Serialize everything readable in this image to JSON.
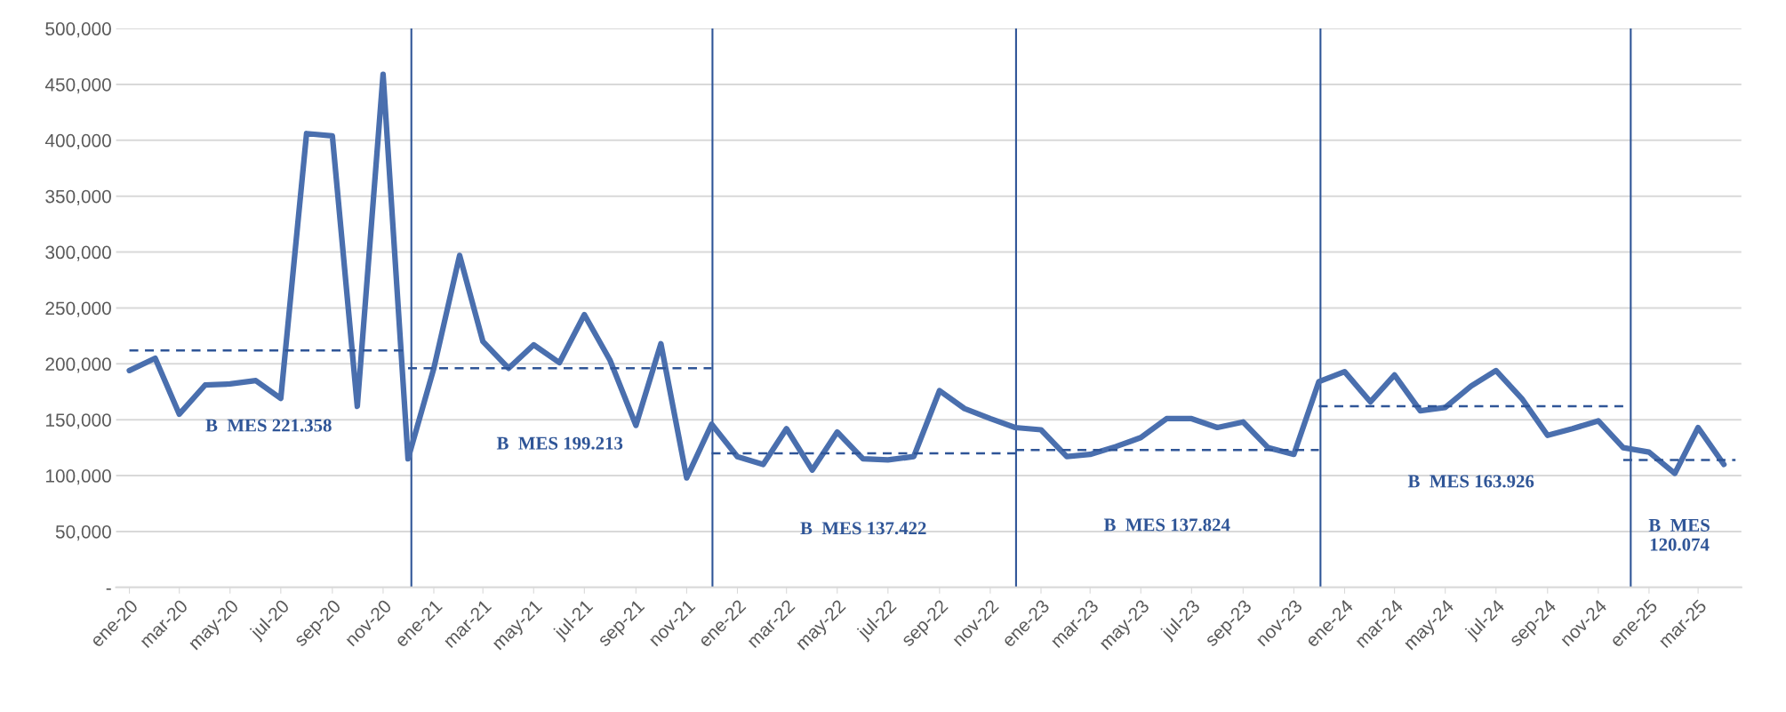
{
  "chart_data": {
    "type": "line",
    "x": [
      "2020-01",
      "2020-02",
      "2020-03",
      "2020-04",
      "2020-05",
      "2020-06",
      "2020-07",
      "2020-08",
      "2020-09",
      "2020-10",
      "2020-11",
      "2020-12",
      "2021-01",
      "2021-02",
      "2021-03",
      "2021-04",
      "2021-05",
      "2021-06",
      "2021-07",
      "2021-08",
      "2021-09",
      "2021-10",
      "2021-11",
      "2021-12",
      "2022-01",
      "2022-02",
      "2022-03",
      "2022-04",
      "2022-05",
      "2022-06",
      "2022-07",
      "2022-08",
      "2022-09",
      "2022-10",
      "2022-11",
      "2022-12",
      "2023-01",
      "2023-02",
      "2023-03",
      "2023-04",
      "2023-05",
      "2023-06",
      "2023-07",
      "2023-08",
      "2023-09",
      "2023-10",
      "2023-11",
      "2023-12",
      "2024-01",
      "2024-02",
      "2024-03",
      "2024-04",
      "2024-05",
      "2024-06",
      "2024-07",
      "2024-08",
      "2024-09",
      "2024-10",
      "2024-11",
      "2024-12",
      "2025-01",
      "2025-02",
      "2025-03",
      "2025-04"
    ],
    "series": [
      {
        "color": "#4a6fae",
        "line_style": "solid",
        "values": [
          194000,
          205000,
          155000,
          181000,
          182000,
          185000,
          169000,
          406000,
          404000,
          162000,
          459000,
          115000,
          196000,
          297000,
          220000,
          196000,
          217000,
          201000,
          244000,
          203000,
          145000,
          218000,
          98000,
          146000,
          117000,
          110000,
          142000,
          105000,
          139000,
          115000,
          114000,
          117000,
          176000,
          160000,
          151000,
          143000,
          141000,
          117000,
          119000,
          126000,
          134000,
          151000,
          151000,
          143000,
          148000,
          125000,
          119000,
          184000,
          193000,
          166000,
          190000,
          158000,
          161000,
          180000,
          194000,
          169000,
          136000,
          142000,
          149000,
          125000,
          121000,
          102000,
          143000,
          110000
        ]
      },
      {
        "type": "line",
        "line_style": "dashed",
        "color": "#2f5597",
        "x": [
          "2020-01",
          "2020-12"
        ],
        "values": [
          212000,
          212000
        ]
      },
      {
        "type": "line",
        "line_style": "dashed",
        "color": "#2f5597",
        "x": [
          "2020-12",
          "2021-12"
        ],
        "values": [
          196000,
          196000
        ]
      },
      {
        "type": "line",
        "line_style": "dashed",
        "color": "#2f5597",
        "x": [
          "2021-12",
          "2022-12"
        ],
        "values": [
          120000,
          120000
        ]
      },
      {
        "type": "line",
        "line_style": "dashed",
        "color": "#2f5597",
        "x": [
          "2022-12",
          "2023-12"
        ],
        "values": [
          123000,
          123000
        ]
      },
      {
        "type": "line",
        "line_style": "dashed",
        "color": "#2f5597",
        "x": [
          "2023-12",
          "2024-12"
        ],
        "values": [
          162000,
          162000
        ]
      },
      {
        "type": "line",
        "line_style": "dashed",
        "color": "#2f5597",
        "x": [
          "2024-12",
          "2025-04-15"
        ],
        "values": [
          114000,
          114000
        ]
      }
    ],
    "ref_lines": [
      {
        "axis": "x",
        "value": "2020-12-05",
        "color": "#2f5597",
        "line_style": "solid"
      },
      {
        "axis": "x",
        "value": "2021-12-02",
        "color": "#2f5597",
        "line_style": "solid"
      },
      {
        "axis": "x",
        "value": "2022-12-02",
        "color": "#2f5597",
        "line_style": "solid"
      },
      {
        "axis": "x",
        "value": "2023-12-03",
        "color": "#2f5597",
        "line_style": "solid"
      },
      {
        "axis": "x",
        "value": "2024-12-10",
        "color": "#2f5597",
        "line_style": "solid"
      }
    ],
    "annotations": [
      "B  MES 221.358",
      "B  MES 199.213",
      "B  MES 137.422",
      "B  MES 137.824",
      "B  MES 163.926",
      "B  MES\n120.074"
    ],
    "xlim": [
      "2019-12-16",
      "2025-04-22"
    ],
    "xticks": [
      {
        "value": "2020-01",
        "label": "ene-20"
      },
      {
        "value": "2020-03",
        "label": "mar-20"
      },
      {
        "value": "2020-05",
        "label": "may-20"
      },
      {
        "value": "2020-07",
        "label": "jul-20"
      },
      {
        "value": "2020-09",
        "label": "sep-20"
      },
      {
        "value": "2020-11",
        "label": "nov-20"
      },
      {
        "value": "2021-01",
        "label": "ene-21"
      },
      {
        "value": "2021-03",
        "label": "mar-21"
      },
      {
        "value": "2021-05",
        "label": "may-21"
      },
      {
        "value": "2021-07",
        "label": "jul-21"
      },
      {
        "value": "2021-09",
        "label": "sep-21"
      },
      {
        "value": "2021-11",
        "label": "nov-21"
      },
      {
        "value": "2022-01",
        "label": "ene-22"
      },
      {
        "value": "2022-03",
        "label": "mar-22"
      },
      {
        "value": "2022-05",
        "label": "may-22"
      },
      {
        "value": "2022-07",
        "label": "jul-22"
      },
      {
        "value": "2022-09",
        "label": "sep-22"
      },
      {
        "value": "2022-11",
        "label": "nov-22"
      },
      {
        "value": "2023-01",
        "label": "ene-23"
      },
      {
        "value": "2023-03",
        "label": "mar-23"
      },
      {
        "value": "2023-05",
        "label": "may-23"
      },
      {
        "value": "2023-07",
        "label": "jul-23"
      },
      {
        "value": "2023-09",
        "label": "sep-23"
      },
      {
        "value": "2023-11",
        "label": "nov-23"
      },
      {
        "value": "2024-01",
        "label": "ene-24"
      },
      {
        "value": "2024-03",
        "label": "mar-24"
      },
      {
        "value": "2024-05",
        "label": "may-24"
      },
      {
        "value": "2024-07",
        "label": "jul-24"
      },
      {
        "value": "2024-09",
        "label": "sep-24"
      },
      {
        "value": "2024-11",
        "label": "nov-24"
      },
      {
        "value": "2025-01",
        "label": "ene-25"
      },
      {
        "value": "2025-03",
        "label": "mar-25"
      }
    ],
    "ylim": [
      0,
      500000
    ],
    "yticks": [
      {
        "value": 0,
        "label": "-"
      },
      {
        "value": 50000,
        "label": "50,000"
      },
      {
        "value": 100000,
        "label": "100,000"
      },
      {
        "value": 150000,
        "label": "150,000"
      },
      {
        "value": 200000,
        "label": "200,000"
      },
      {
        "value": 250000,
        "label": "250,000"
      },
      {
        "value": 300000,
        "label": "300,000"
      },
      {
        "value": 350000,
        "label": "350,000"
      },
      {
        "value": 400000,
        "label": "400,000"
      },
      {
        "value": 450000,
        "label": "450,000"
      },
      {
        "value": 500000,
        "label": "500,000"
      }
    ],
    "grid": "y",
    "legend": false
  }
}
